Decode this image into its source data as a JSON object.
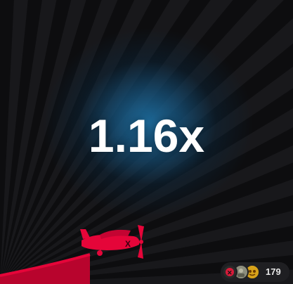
{
  "game": {
    "multiplier": "1.16x",
    "active_bets_count": "179"
  },
  "players": [
    {
      "avatar": "player-avatar-1"
    },
    {
      "avatar": "player-avatar-2"
    },
    {
      "avatar": "player-avatar-3"
    }
  ],
  "colors": {
    "background": "#0d0d0f",
    "ray": "#18181b",
    "glow": "#1e6ea0",
    "plane": "#e50539",
    "multiplier_text": "#ffffff"
  },
  "icons": {
    "plane": "red-propeller-plane-icon"
  }
}
